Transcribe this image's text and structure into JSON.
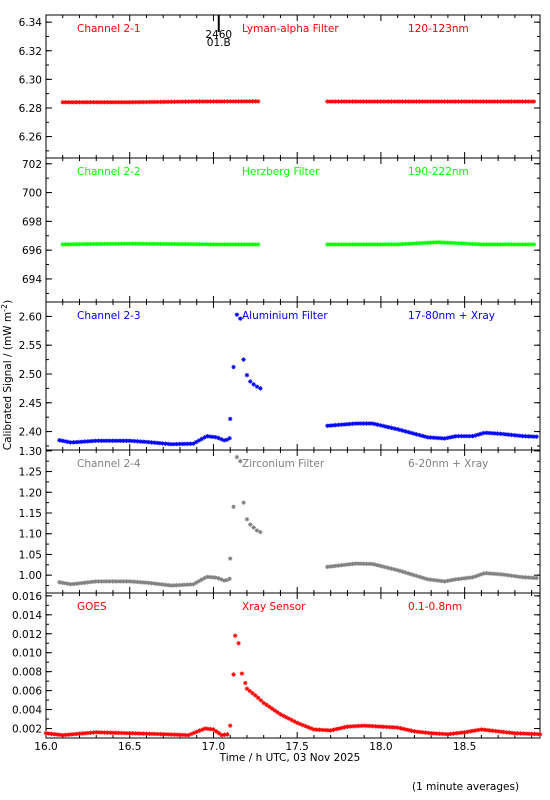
{
  "xlabel": "Time / h UTC, 03 Nov 2025",
  "ylabel": "Calibrated Signal / (mW m",
  "ylabel_sup": "-2",
  "ylabel_close": ")",
  "footnote": "(1 minute averages)",
  "marker": {
    "x": 16.96,
    "labels": [
      "2460",
      "01.B"
    ]
  },
  "chart_data": [
    {
      "type": "scatter",
      "channel": "Channel 2-1",
      "filter": "Lyman-alpha Filter",
      "band": "120-123nm",
      "color": "#ff0000",
      "xlim": [
        16.0,
        18.95
      ],
      "ylim": [
        6.245,
        6.345
      ],
      "yticks": [
        6.26,
        6.28,
        6.3,
        6.32,
        6.34
      ],
      "ytick_labels": [
        "6.26",
        "6.28",
        "6.30",
        "6.32",
        "6.34"
      ],
      "segments": [
        {
          "x_start": 16.1,
          "x_end": 17.27,
          "points": [
            [
              16.1,
              6.284
            ],
            [
              16.5,
              6.284
            ],
            [
              16.9,
              6.2845
            ],
            [
              17.27,
              6.2846
            ]
          ]
        },
        {
          "x_start": 17.68,
          "x_end": 18.92,
          "points": [
            [
              17.68,
              6.2845
            ],
            [
              18.1,
              6.2845
            ],
            [
              18.5,
              6.2845
            ],
            [
              18.92,
              6.2845
            ]
          ]
        }
      ],
      "isolated": []
    },
    {
      "type": "scatter",
      "channel": "Channel 2-2",
      "filter": "Herzberg Filter",
      "band": "190-222nm",
      "color": "#00ff00",
      "xlim": [
        16.0,
        18.95
      ],
      "ylim": [
        692.4,
        702.4
      ],
      "yticks": [
        694,
        696,
        698,
        700,
        702
      ],
      "ytick_labels": [
        "694",
        "696",
        "698",
        "700",
        "702"
      ],
      "segments": [
        {
          "x_start": 16.1,
          "x_end": 17.27,
          "points": [
            [
              16.1,
              696.4
            ],
            [
              16.5,
              696.45
            ],
            [
              17.0,
              696.4
            ],
            [
              17.27,
              696.4
            ]
          ]
        },
        {
          "x_start": 17.68,
          "x_end": 18.92,
          "points": [
            [
              17.68,
              696.4
            ],
            [
              18.1,
              696.4
            ],
            [
              18.34,
              696.55
            ],
            [
              18.6,
              696.4
            ],
            [
              18.92,
              696.4
            ]
          ]
        }
      ],
      "isolated": []
    },
    {
      "type": "scatter",
      "channel": "Channel 2-3",
      "filter": "Aluminium Filter",
      "band": "17-80nm + Xray",
      "color": "#0000ff",
      "xlim": [
        16.0,
        18.95
      ],
      "ylim": [
        2.368,
        2.625
      ],
      "yticks": [
        2.4,
        2.45,
        2.5,
        2.55,
        2.6
      ],
      "ytick_labels": [
        "2.40",
        "2.45",
        "2.50",
        "2.55",
        "2.60"
      ],
      "segments": [
        {
          "x_start": 16.08,
          "x_end": 17.1,
          "points": [
            [
              16.08,
              2.385
            ],
            [
              16.15,
              2.381
            ],
            [
              16.3,
              2.384
            ],
            [
              16.5,
              2.384
            ],
            [
              16.6,
              2.382
            ],
            [
              16.75,
              2.378
            ],
            [
              16.88,
              2.379
            ],
            [
              16.96,
              2.392
            ],
            [
              17.02,
              2.39
            ],
            [
              17.07,
              2.384
            ],
            [
              17.1,
              2.389
            ]
          ]
        },
        {
          "x_start": 17.68,
          "x_end": 18.94,
          "points": [
            [
              17.68,
              2.41
            ],
            [
              17.85,
              2.414
            ],
            [
              17.95,
              2.414
            ],
            [
              18.1,
              2.404
            ],
            [
              18.28,
              2.39
            ],
            [
              18.38,
              2.388
            ],
            [
              18.45,
              2.392
            ],
            [
              18.55,
              2.392
            ],
            [
              18.62,
              2.398
            ],
            [
              18.72,
              2.396
            ],
            [
              18.85,
              2.392
            ],
            [
              18.94,
              2.391
            ]
          ]
        }
      ],
      "isolated": [
        [
          17.1,
          2.422
        ],
        [
          17.12,
          2.512
        ],
        [
          17.14,
          2.603
        ],
        [
          17.16,
          2.596
        ],
        [
          17.18,
          2.525
        ],
        [
          17.2,
          2.498
        ],
        [
          17.22,
          2.487
        ],
        [
          17.24,
          2.482
        ],
        [
          17.26,
          2.478
        ],
        [
          17.28,
          2.475
        ]
      ]
    },
    {
      "type": "scatter",
      "channel": "Channel 2-4",
      "filter": "Zirconium Filter",
      "band": "6-20nm + Xray",
      "color": "#808080",
      "xlim": [
        16.0,
        18.95
      ],
      "ylim": [
        0.957,
        1.302
      ],
      "yticks": [
        1.0,
        1.05,
        1.1,
        1.15,
        1.2,
        1.25,
        1.3
      ],
      "ytick_labels": [
        "1.00",
        "1.05",
        "1.10",
        "1.15",
        "1.20",
        "1.25",
        "1.30"
      ],
      "segments": [
        {
          "x_start": 16.08,
          "x_end": 17.1,
          "points": [
            [
              16.08,
              0.983
            ],
            [
              16.15,
              0.978
            ],
            [
              16.3,
              0.985
            ],
            [
              16.5,
              0.985
            ],
            [
              16.6,
              0.982
            ],
            [
              16.75,
              0.975
            ],
            [
              16.88,
              0.978
            ],
            [
              16.96,
              0.996
            ],
            [
              17.02,
              0.994
            ],
            [
              17.07,
              0.986
            ],
            [
              17.1,
              0.992
            ]
          ]
        },
        {
          "x_start": 17.68,
          "x_end": 18.94,
          "points": [
            [
              17.68,
              1.02
            ],
            [
              17.85,
              1.028
            ],
            [
              17.95,
              1.027
            ],
            [
              18.1,
              1.012
            ],
            [
              18.28,
              0.99
            ],
            [
              18.38,
              0.985
            ],
            [
              18.45,
              0.99
            ],
            [
              18.55,
              0.995
            ],
            [
              18.62,
              1.005
            ],
            [
              18.72,
              1.002
            ],
            [
              18.85,
              0.995
            ],
            [
              18.94,
              0.993
            ]
          ]
        }
      ],
      "isolated": [
        [
          17.1,
          1.04
        ],
        [
          17.12,
          1.165
        ],
        [
          17.14,
          1.285
        ],
        [
          17.16,
          1.275
        ],
        [
          17.18,
          1.175
        ],
        [
          17.2,
          1.135
        ],
        [
          17.22,
          1.122
        ],
        [
          17.24,
          1.115
        ],
        [
          17.26,
          1.108
        ],
        [
          17.28,
          1.104
        ]
      ]
    },
    {
      "type": "scatter",
      "channel": "GOES",
      "filter": "Xray Sensor",
      "band": "0.1-0.8nm",
      "color": "#ff0000",
      "xlim": [
        16.0,
        18.95
      ],
      "ylim": [
        0.001,
        0.0163
      ],
      "yticks": [
        0.002,
        0.004,
        0.006,
        0.008,
        0.01,
        0.012,
        0.014,
        0.016
      ],
      "ytick_labels": [
        "0.002",
        "0.004",
        "0.006",
        "0.008",
        "0.010",
        "0.012",
        "0.014",
        "0.016"
      ],
      "xticks": [
        16.0,
        16.5,
        17.0,
        17.5,
        18.0,
        18.5
      ],
      "xtick_labels": [
        "16.0",
        "16.5",
        "17.0",
        "17.5",
        "18.0",
        "18.5"
      ],
      "segments": [
        {
          "x_start": 16.0,
          "x_end": 17.09,
          "points": [
            [
              16.0,
              0.0015
            ],
            [
              16.1,
              0.0013
            ],
            [
              16.3,
              0.0016
            ],
            [
              16.5,
              0.0015
            ],
            [
              16.7,
              0.0014
            ],
            [
              16.85,
              0.0013
            ],
            [
              16.95,
              0.002
            ],
            [
              17.0,
              0.0019
            ],
            [
              17.05,
              0.0013
            ],
            [
              17.09,
              0.0014
            ]
          ]
        },
        {
          "x_start": 17.2,
          "x_end": 18.95,
          "points": [
            [
              17.2,
              0.0062
            ],
            [
              17.25,
              0.0055
            ],
            [
              17.3,
              0.0047
            ],
            [
              17.4,
              0.0035
            ],
            [
              17.5,
              0.0026
            ],
            [
              17.6,
              0.0019
            ],
            [
              17.7,
              0.0018
            ],
            [
              17.8,
              0.0022
            ],
            [
              17.9,
              0.0023
            ],
            [
              18.0,
              0.0022
            ],
            [
              18.1,
              0.0021
            ],
            [
              18.2,
              0.0017
            ],
            [
              18.3,
              0.0015
            ],
            [
              18.4,
              0.0014
            ],
            [
              18.5,
              0.0016
            ],
            [
              18.6,
              0.0019
            ],
            [
              18.7,
              0.0017
            ],
            [
              18.8,
              0.0015
            ],
            [
              18.95,
              0.0014
            ]
          ]
        }
      ],
      "isolated": [
        [
          17.1,
          0.0023
        ],
        [
          17.12,
          0.0077
        ],
        [
          17.13,
          0.0118
        ],
        [
          17.15,
          0.011
        ],
        [
          17.17,
          0.0078
        ],
        [
          17.19,
          0.0068
        ]
      ]
    }
  ]
}
